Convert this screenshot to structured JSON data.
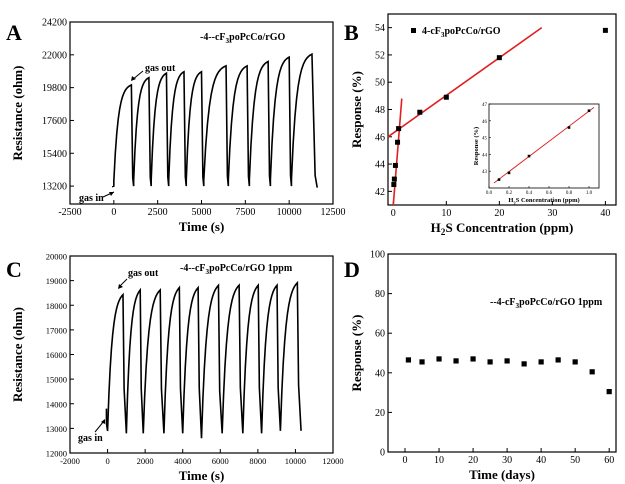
{
  "chart_data": [
    {
      "panel": "A",
      "type": "line",
      "legend": "-4--cF3poPcCo/rGO",
      "xlabel": "Time (s)",
      "ylabel": "Resistance (ohm)",
      "xlim": [
        -2500,
        12500
      ],
      "ylim": [
        12000,
        24200
      ],
      "xticks": [
        -2500,
        0,
        2500,
        5000,
        7500,
        10000,
        12500
      ],
      "yticks": [
        13200,
        15400,
        17600,
        19800,
        22000,
        24200
      ],
      "annotations": [
        "gas in",
        "gas out"
      ],
      "baseline": 13200,
      "start_time": 0,
      "cycles": [
        {
          "t_on": 0,
          "t_off": 1000,
          "peak": 20100
        },
        {
          "t_on": 1130,
          "t_off": 2000,
          "peak": 20600
        },
        {
          "t_on": 2130,
          "t_off": 3000,
          "peak": 20900
        },
        {
          "t_on": 3130,
          "t_off": 4000,
          "peak": 21000
        },
        {
          "t_on": 4130,
          "t_off": 5000,
          "peak": 21000
        },
        {
          "t_on": 5130,
          "t_off": 6400,
          "peak": 21400
        },
        {
          "t_on": 6530,
          "t_off": 7600,
          "peak": 21400
        },
        {
          "t_on": 7730,
          "t_off": 8800,
          "peak": 21700
        },
        {
          "t_on": 8930,
          "t_off": 10000,
          "peak": 22000
        },
        {
          "t_on": 10130,
          "t_off": 11300,
          "peak": 22200
        }
      ],
      "end_time": 11600,
      "end_value": 13100
    },
    {
      "panel": "B",
      "type": "scatter",
      "legend": "4-cF3poPcCo/rGO",
      "xlabel": "H2S Concentration (ppm)",
      "ylabel": "Response (%)",
      "xlim": [
        -1,
        42
      ],
      "ylim": [
        41,
        55
      ],
      "xticks": [
        0,
        10,
        20,
        30,
        40
      ],
      "yticks": [
        42,
        44,
        46,
        48,
        50,
        52,
        54
      ],
      "points": [
        {
          "x": 0.1,
          "y": 42.5
        },
        {
          "x": 0.2,
          "y": 42.9
        },
        {
          "x": 0.4,
          "y": 43.9
        },
        {
          "x": 0.8,
          "y": 45.6
        },
        {
          "x": 1,
          "y": 46.6
        },
        {
          "x": 5,
          "y": 47.8
        },
        {
          "x": 10,
          "y": 48.9
        },
        {
          "x": 20,
          "y": 51.8
        },
        {
          "x": 40,
          "y": 53.8
        }
      ],
      "fit_lines": [
        {
          "x": [
            0,
            1.6
          ],
          "y": [
            41,
            48.8
          ]
        },
        {
          "x": [
            -1,
            28
          ],
          "y": [
            46,
            54
          ]
        }
      ],
      "inset": {
        "xlabel": "H2S Concentration (ppm)",
        "ylabel": "Response (%)",
        "xlim": [
          0,
          1.1
        ],
        "ylim": [
          42,
          47
        ],
        "xticks": [
          0.0,
          0.2,
          0.4,
          0.6,
          0.8,
          1.0
        ],
        "xtick_labels": [
          "0.0",
          "0.2",
          "0.4",
          "0.6",
          "0.8",
          "1.0"
        ],
        "yticks": [
          43,
          44,
          45,
          46,
          47
        ],
        "points": [
          {
            "x": 0.1,
            "y": 42.5
          },
          {
            "x": 0.2,
            "y": 42.9
          },
          {
            "x": 0.4,
            "y": 43.9
          },
          {
            "x": 0.8,
            "y": 45.6
          },
          {
            "x": 1.0,
            "y": 46.6
          }
        ],
        "fit_line": {
          "x": [
            0.05,
            1.05
          ],
          "y": [
            42.3,
            46.8
          ]
        }
      }
    },
    {
      "panel": "C",
      "type": "line",
      "legend": "-4--cF3poPcCo/rGO 1ppm",
      "xlabel": "Time (s)",
      "ylabel": "Resistance (ohm)",
      "xlim": [
        -2000,
        12000
      ],
      "ylim": [
        12000,
        20000
      ],
      "xticks": [
        -2000,
        0,
        2000,
        4000,
        6000,
        8000,
        10000,
        12000
      ],
      "yticks": [
        12000,
        13000,
        14000,
        15000,
        16000,
        17000,
        18000,
        19000,
        20000
      ],
      "annotations": [
        "gas in",
        "gas out"
      ],
      "baseline": 12900,
      "start_time": 0,
      "cycles": [
        {
          "t_on": 0,
          "t_off": 1000,
          "peak": 18600,
          "trough": 12900
        },
        {
          "t_on": 1000,
          "t_off": 1900,
          "peak": 18800,
          "trough": 12800
        },
        {
          "t_on": 1900,
          "t_off": 3000,
          "peak": 18800,
          "trough": 12800
        },
        {
          "t_on": 3000,
          "t_off": 4000,
          "peak": 18900,
          "trough": 12800
        },
        {
          "t_on": 4000,
          "t_off": 5000,
          "peak": 18900,
          "trough": 12800
        },
        {
          "t_on": 5000,
          "t_off": 6100,
          "peak": 19000,
          "trough": 12600
        },
        {
          "t_on": 6100,
          "t_off": 7200,
          "peak": 19000,
          "trough": 12800
        },
        {
          "t_on": 7200,
          "t_off": 8200,
          "peak": 19000,
          "trough": 12800
        },
        {
          "t_on": 8200,
          "t_off": 9200,
          "peak": 19000,
          "trough": 12800
        },
        {
          "t_on": 9200,
          "t_off": 10300,
          "peak": 19100,
          "trough": 12900
        }
      ]
    },
    {
      "panel": "D",
      "type": "scatter",
      "legend": "--4-cF3poPcCo/rGO 1ppm",
      "xlabel": "Time (days)",
      "ylabel": "Response (%)",
      "xlim": [
        -5,
        62
      ],
      "ylim": [
        0,
        100
      ],
      "xticks": [
        0,
        10,
        20,
        30,
        40,
        50,
        60
      ],
      "yticks": [
        0,
        20,
        40,
        60,
        80,
        100
      ],
      "points": [
        {
          "x": 1,
          "y": 46.5
        },
        {
          "x": 5,
          "y": 45.5
        },
        {
          "x": 10,
          "y": 47
        },
        {
          "x": 15,
          "y": 46
        },
        {
          "x": 20,
          "y": 47
        },
        {
          "x": 25,
          "y": 45.5
        },
        {
          "x": 30,
          "y": 46
        },
        {
          "x": 35,
          "y": 44.5
        },
        {
          "x": 40,
          "y": 45.5
        },
        {
          "x": 45,
          "y": 46.5
        },
        {
          "x": 50,
          "y": 45.5
        },
        {
          "x": 55,
          "y": 40.5
        },
        {
          "x": 60,
          "y": 30.5
        }
      ]
    }
  ],
  "colors": {
    "fit_line": "#e02020",
    "curve": "#000000"
  }
}
